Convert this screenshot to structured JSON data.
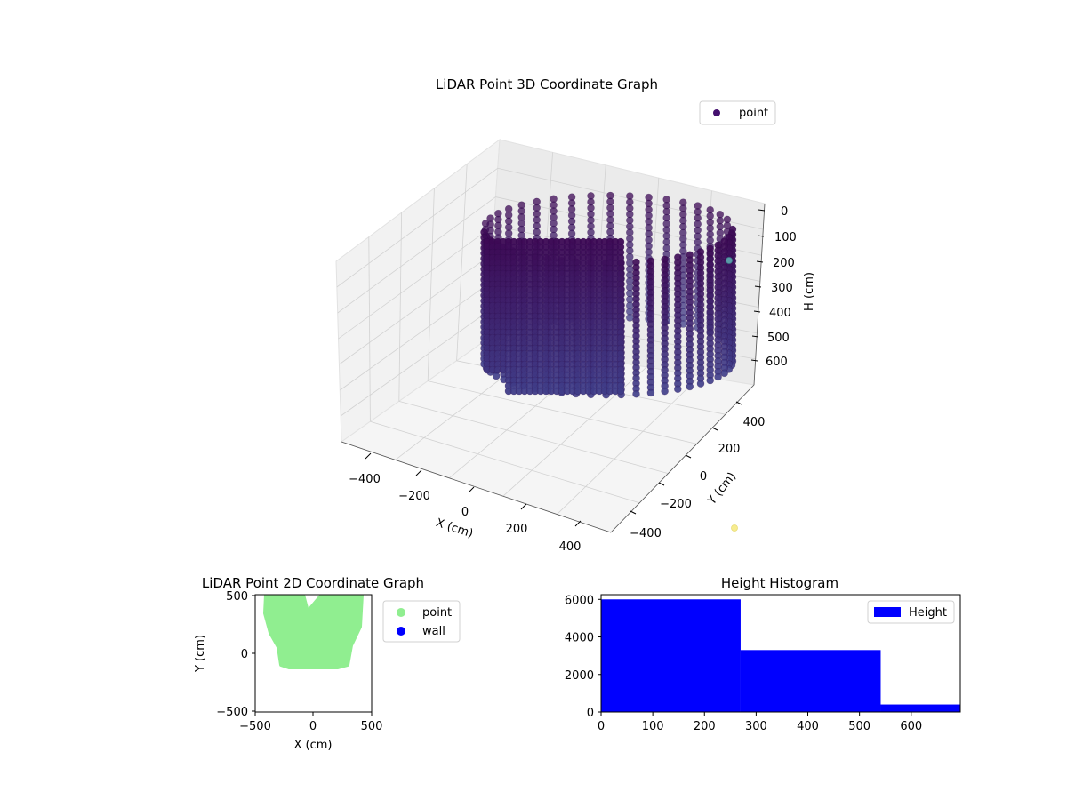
{
  "chart_data": [
    {
      "type": "scatter",
      "title": "LiDAR Point 3D Coordinate Graph",
      "xlabel": "X (cm)",
      "ylabel": "Y (cm)",
      "zlabel": "H (cm)",
      "x_ticks": [
        "−400",
        "−200",
        "0",
        "200",
        "400"
      ],
      "y_ticks": [
        "−400",
        "−200",
        "0",
        "200",
        "400"
      ],
      "z_ticks": [
        "0",
        "100",
        "200",
        "300",
        "400",
        "500",
        "600"
      ],
      "xlim": [
        -500,
        500
      ],
      "ylim": [
        -500,
        500
      ],
      "zlim": [
        0,
        700
      ],
      "z_inverted": true,
      "grid": true,
      "legend": {
        "placement": "top-right",
        "entries": [
          "point"
        ]
      },
      "colormap": "viridis",
      "point_color": "#3b0f6f",
      "outlier_colors": [
        "#4f8fa0",
        "#f5e98a"
      ],
      "wall_radius_cm": 400,
      "height_range_cm": [
        0,
        600
      ]
    },
    {
      "type": "scatter",
      "title": "LiDAR Point 2D Coordinate Graph",
      "xlabel": "X (cm)",
      "ylabel": "Y (cm)",
      "x_ticks": [
        "−500",
        "0",
        "500"
      ],
      "y_ticks": [
        "−500",
        "0",
        "500"
      ],
      "xlim": [
        -500,
        500
      ],
      "ylim": [
        -500,
        500
      ],
      "legend": {
        "placement": "right-outside",
        "entries": [
          "point",
          "wall"
        ]
      },
      "series": [
        {
          "name": "point",
          "color": "#90ee90"
        },
        {
          "name": "wall",
          "color": "#0000ff"
        }
      ]
    },
    {
      "type": "bar",
      "title": "Height Histogram",
      "x_ticks": [
        "0",
        "100",
        "200",
        "300",
        "400",
        "500",
        "600"
      ],
      "y_ticks": [
        "0",
        "2000",
        "4000",
        "6000"
      ],
      "xlim": [
        0,
        695
      ],
      "ylim": [
        0,
        6250
      ],
      "legend": {
        "placement": "top-right",
        "entries": [
          "Height"
        ]
      },
      "color": "#0000ff",
      "bins": [
        {
          "x0": 0,
          "x1": 270,
          "count": 6000
        },
        {
          "x0": 270,
          "x1": 541,
          "count": 3300
        },
        {
          "x0": 541,
          "x1": 695,
          "count": 400
        }
      ]
    }
  ]
}
